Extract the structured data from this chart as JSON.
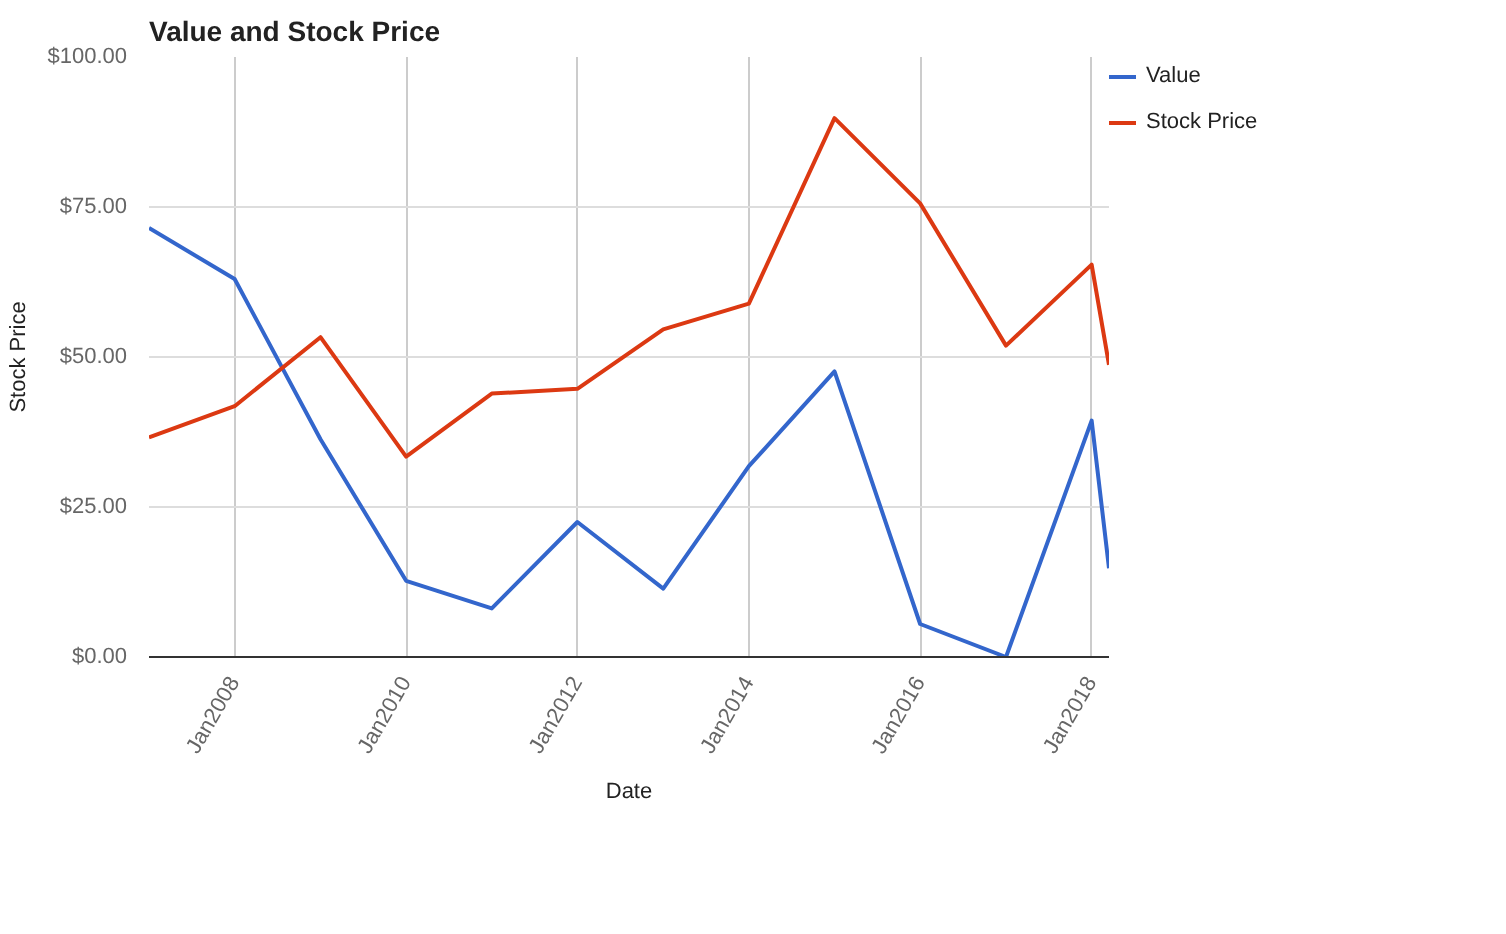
{
  "chart_data": {
    "type": "line",
    "title": "Value and Stock Price",
    "xlabel": "Date",
    "ylabel": "Stock Price",
    "x": [
      "2006-12-31",
      "2007-12-31",
      "2008-12-31",
      "2009-12-31",
      "2010-12-31",
      "2011-12-31",
      "2012-12-31",
      "2013-12-31",
      "2014-12-31",
      "2015-12-31",
      "2016-12-31",
      "2017-12-31",
      "2018-03-15"
    ],
    "series": [
      {
        "name": "Value",
        "color": "#3366cc",
        "values": [
          71.5,
          63,
          36.3,
          12.7,
          8.1,
          22.5,
          11.4,
          31.8,
          47.6,
          5.5,
          0,
          39.4,
          14.8
        ]
      },
      {
        "name": "Stock Price",
        "color": "#dc3912",
        "values": [
          36.6,
          41.8,
          53.3,
          33.4,
          43.9,
          44.7,
          54.6,
          58.9,
          89.8,
          75.6,
          51.9,
          65.4,
          48.7
        ]
      }
    ],
    "xlim": [
      "2006-12-31",
      "2018-03-15"
    ],
    "xticks": [
      {
        "value": "2008-01-01",
        "label": "Jan2008"
      },
      {
        "value": "2010-01-01",
        "label": "Jan2010"
      },
      {
        "value": "2012-01-01",
        "label": "Jan2012"
      },
      {
        "value": "2014-01-01",
        "label": "Jan2014"
      },
      {
        "value": "2016-01-01",
        "label": "Jan2016"
      },
      {
        "value": "2018-01-01",
        "label": "Jan2018"
      }
    ],
    "ylim": [
      0,
      100
    ],
    "yticks": [
      {
        "value": 0,
        "label": "$0.00"
      },
      {
        "value": 25,
        "label": "$25.00"
      },
      {
        "value": 50,
        "label": "$50.00"
      },
      {
        "value": 75,
        "label": "$75.00"
      },
      {
        "value": 100,
        "label": "$100.00"
      }
    ],
    "grid": true,
    "legend": "right",
    "line_style": "solid"
  }
}
